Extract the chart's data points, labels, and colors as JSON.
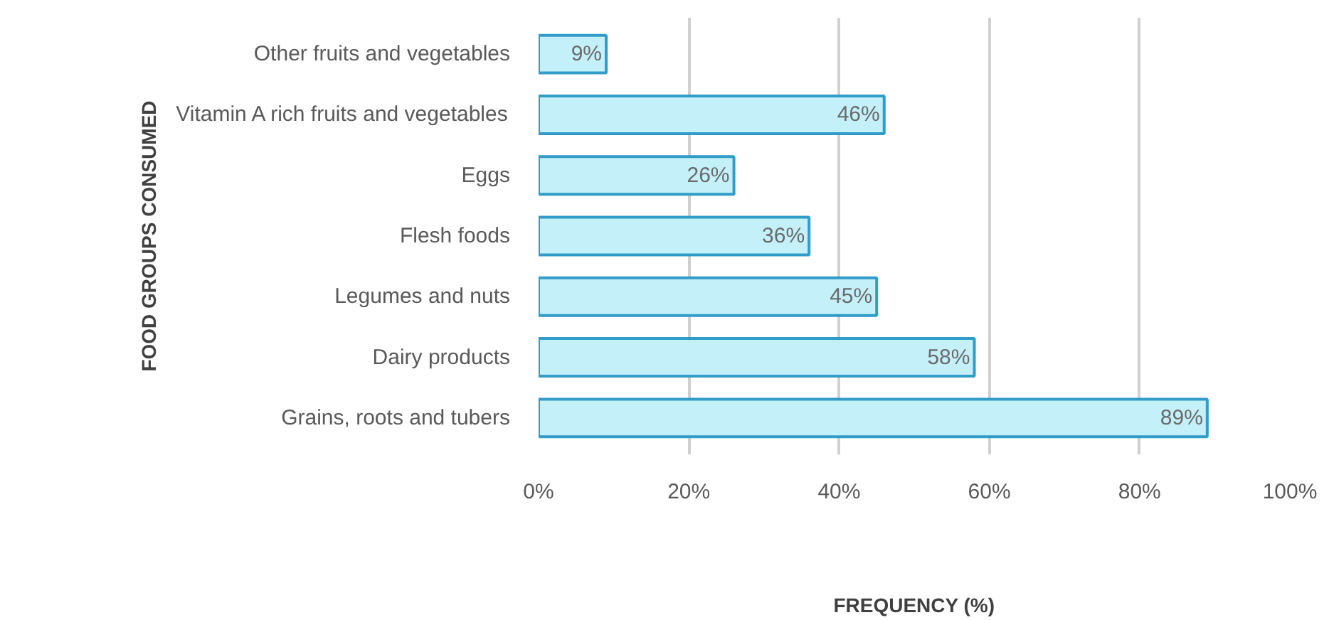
{
  "chart_data": {
    "type": "bar",
    "orientation": "horizontal",
    "xlabel": "FREQUENCY (%)",
    "ylabel": "FOOD GROUPS CONSUMED",
    "categories": [
      "Other fruits and vegetables",
      "Vitamin A rich fruits and vegetables",
      "Eggs",
      "Flesh foods",
      "Legumes and nuts",
      "Dairy products",
      "Grains, roots and tubers"
    ],
    "values": [
      9,
      46,
      26,
      36,
      45,
      58,
      89
    ],
    "value_labels": [
      "9%",
      "46%",
      "26%",
      "36%",
      "45%",
      "58%",
      "89%"
    ],
    "color": "#c4f0fa",
    "xlim": [
      0,
      100
    ],
    "xticks": [
      {
        "value": 0,
        "label": "0%"
      },
      {
        "value": 20,
        "label": "20%"
      },
      {
        "value": 40,
        "label": "40%"
      },
      {
        "value": 60,
        "label": "60%"
      },
      {
        "value": 80,
        "label": "80%"
      },
      {
        "value": 100,
        "label": "100%"
      }
    ],
    "grid": "x"
  }
}
